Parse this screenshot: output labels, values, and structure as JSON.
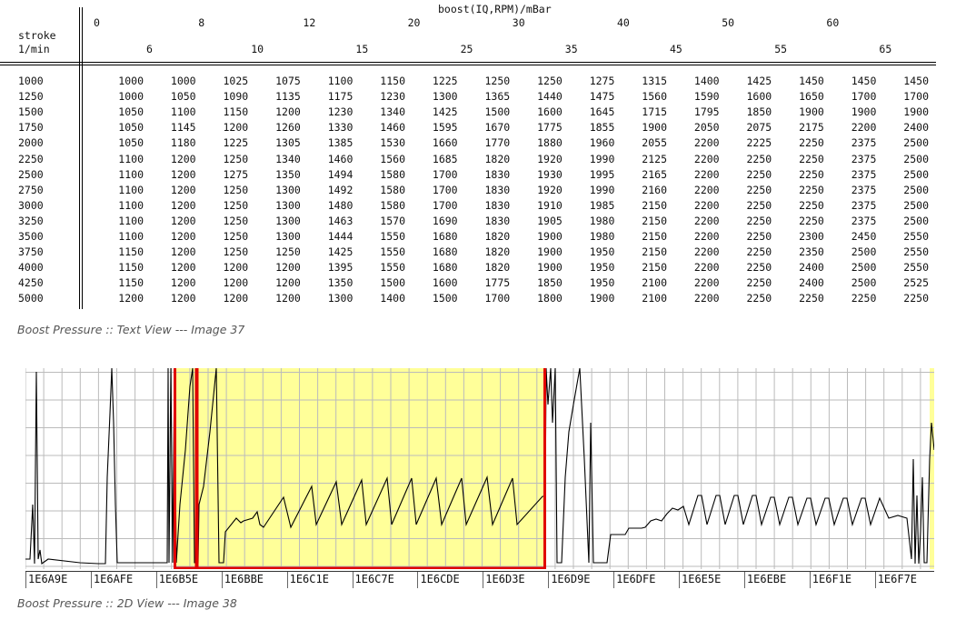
{
  "text_view": {
    "row_header_top": "stroke",
    "row_header_bottom": "1/min",
    "title": "boost(IQ,RPM)/mBar",
    "col_top": [
      "0",
      "8",
      "12",
      "20",
      "30",
      "40",
      "50",
      "60"
    ],
    "col_bottom": [
      "6",
      "10",
      "15",
      "25",
      "35",
      "45",
      "55",
      "65"
    ],
    "rows": [
      {
        "rpm": "1000",
        "values": [
          "1000",
          "1000",
          "1025",
          "1075",
          "1100",
          "1150",
          "1225",
          "1250",
          "1250",
          "1275",
          "1315",
          "1400",
          "1425",
          "1450",
          "1450",
          "1450"
        ]
      },
      {
        "rpm": "1250",
        "values": [
          "1000",
          "1050",
          "1090",
          "1135",
          "1175",
          "1230",
          "1300",
          "1365",
          "1440",
          "1475",
          "1560",
          "1590",
          "1600",
          "1650",
          "1700",
          "1700"
        ]
      },
      {
        "rpm": "1500",
        "values": [
          "1050",
          "1100",
          "1150",
          "1200",
          "1230",
          "1340",
          "1425",
          "1500",
          "1600",
          "1645",
          "1715",
          "1795",
          "1850",
          "1900",
          "1900",
          "1900"
        ]
      },
      {
        "rpm": "1750",
        "values": [
          "1050",
          "1145",
          "1200",
          "1260",
          "1330",
          "1460",
          "1595",
          "1670",
          "1775",
          "1855",
          "1900",
          "2050",
          "2075",
          "2175",
          "2200",
          "2400"
        ]
      },
      {
        "rpm": "2000",
        "values": [
          "1050",
          "1180",
          "1225",
          "1305",
          "1385",
          "1530",
          "1660",
          "1770",
          "1880",
          "1960",
          "2055",
          "2200",
          "2225",
          "2250",
          "2375",
          "2500"
        ]
      },
      {
        "rpm": "2250",
        "values": [
          "1100",
          "1200",
          "1250",
          "1340",
          "1460",
          "1560",
          "1685",
          "1820",
          "1920",
          "1990",
          "2125",
          "2200",
          "2250",
          "2250",
          "2375",
          "2500"
        ]
      },
      {
        "rpm": "2500",
        "values": [
          "1100",
          "1200",
          "1275",
          "1350",
          "1494",
          "1580",
          "1700",
          "1830",
          "1930",
          "1995",
          "2165",
          "2200",
          "2250",
          "2250",
          "2375",
          "2500"
        ]
      },
      {
        "rpm": "2750",
        "values": [
          "1100",
          "1200",
          "1250",
          "1300",
          "1492",
          "1580",
          "1700",
          "1830",
          "1920",
          "1990",
          "2160",
          "2200",
          "2250",
          "2250",
          "2375",
          "2500"
        ]
      },
      {
        "rpm": "3000",
        "values": [
          "1100",
          "1200",
          "1250",
          "1300",
          "1480",
          "1580",
          "1700",
          "1830",
          "1910",
          "1985",
          "2150",
          "2200",
          "2250",
          "2250",
          "2375",
          "2500"
        ]
      },
      {
        "rpm": "3250",
        "values": [
          "1100",
          "1200",
          "1250",
          "1300",
          "1463",
          "1570",
          "1690",
          "1830",
          "1905",
          "1980",
          "2150",
          "2200",
          "2250",
          "2250",
          "2375",
          "2500"
        ]
      },
      {
        "rpm": "3500",
        "values": [
          "1100",
          "1200",
          "1250",
          "1300",
          "1444",
          "1550",
          "1680",
          "1820",
          "1900",
          "1980",
          "2150",
          "2200",
          "2250",
          "2300",
          "2450",
          "2550"
        ]
      },
      {
        "rpm": "3750",
        "values": [
          "1150",
          "1200",
          "1250",
          "1250",
          "1425",
          "1550",
          "1680",
          "1820",
          "1900",
          "1950",
          "2150",
          "2200",
          "2250",
          "2350",
          "2500",
          "2550"
        ]
      },
      {
        "rpm": "4000",
        "values": [
          "1150",
          "1200",
          "1200",
          "1200",
          "1395",
          "1550",
          "1680",
          "1820",
          "1900",
          "1950",
          "2150",
          "2200",
          "2250",
          "2400",
          "2500",
          "2550"
        ]
      },
      {
        "rpm": "4250",
        "values": [
          "1150",
          "1200",
          "1200",
          "1200",
          "1350",
          "1500",
          "1600",
          "1775",
          "1850",
          "1950",
          "2100",
          "2200",
          "2250",
          "2400",
          "2500",
          "2525"
        ]
      },
      {
        "rpm": "5000",
        "values": [
          "1200",
          "1200",
          "1200",
          "1200",
          "1300",
          "1400",
          "1500",
          "1700",
          "1800",
          "1900",
          "2100",
          "2200",
          "2250",
          "2250",
          "2250",
          "2250"
        ]
      }
    ]
  },
  "caption_text": "Boost Pressure :: Text View --- Image 37",
  "plot_view": {
    "x_labels": [
      "1E6A9E",
      "1E6AFE",
      "1E6B5E",
      "1E6BBE",
      "1E6C1E",
      "1E6C7E",
      "1E6CDE",
      "1E6D3E",
      "1E6D9E",
      "1E6DFE",
      "1E6E5E",
      "1E6EBE",
      "1E6F1E",
      "1E6F7E"
    ],
    "highlight_color": "#ffff99",
    "selection_color": "#e00000",
    "grid_color": "#bbbbbb",
    "line_color": "#000000"
  },
  "caption_2d": "Boost Pressure :: 2D View --- Image 38"
}
